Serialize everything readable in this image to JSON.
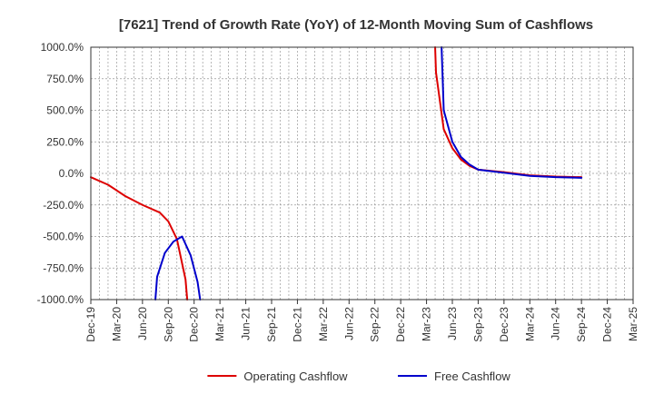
{
  "chart_data": {
    "type": "line",
    "title": "[7621]  Trend of Growth Rate (YoY) of 12-Month Moving Sum of Cashflows",
    "xlabel": "",
    "ylabel": "",
    "ylim": [
      -1000,
      1000
    ],
    "y_ticks": [
      1000,
      750,
      500,
      250,
      0,
      -250,
      -500,
      -750,
      -1000
    ],
    "y_tick_labels": [
      "1000.0%",
      "750.0%",
      "500.0%",
      "250.0%",
      "0.0%",
      "-250.0%",
      "-500.0%",
      "-750.0%",
      "-1000.0%"
    ],
    "x_categories": [
      "Dec-19",
      "Mar-20",
      "Jun-20",
      "Sep-20",
      "Dec-20",
      "Mar-21",
      "Jun-21",
      "Sep-21",
      "Dec-21",
      "Mar-22",
      "Jun-22",
      "Sep-22",
      "Dec-22",
      "Mar-23",
      "Jun-23",
      "Sep-23",
      "Dec-23",
      "Mar-24",
      "Jun-24",
      "Sep-24",
      "Dec-24",
      "Mar-25"
    ],
    "grid": true,
    "legend_position": "bottom-center",
    "series": [
      {
        "name": "Operating Cashflow",
        "color": "#dd0000",
        "segments": [
          [
            [
              0,
              -30
            ],
            [
              2,
              -90
            ],
            [
              4,
              -180
            ],
            [
              6,
              -250
            ],
            [
              8,
              -310
            ],
            [
              9,
              -380
            ],
            [
              10,
              -520
            ],
            [
              11,
              -840
            ],
            [
              11.2,
              -1000
            ]
          ],
          [
            [
              40.0,
              1000
            ],
            [
              40.1,
              800
            ],
            [
              41,
              350
            ],
            [
              42,
              200
            ],
            [
              43,
              110
            ],
            [
              44,
              60
            ],
            [
              45,
              30
            ],
            [
              48,
              10
            ],
            [
              51,
              -15
            ],
            [
              54,
              -25
            ],
            [
              57,
              -30
            ]
          ]
        ]
      },
      {
        "name": "Free Cashflow",
        "color": "#0000cc",
        "segments": [
          [
            [
              7.5,
              -1000
            ],
            [
              7.7,
              -820
            ],
            [
              8.6,
              -630
            ],
            [
              9.6,
              -540
            ],
            [
              10.6,
              -500
            ],
            [
              11.6,
              -650
            ],
            [
              12.4,
              -860
            ],
            [
              12.7,
              -1000
            ]
          ],
          [
            [
              40.75,
              1000
            ],
            [
              41,
              500
            ],
            [
              42,
              250
            ],
            [
              43,
              130
            ],
            [
              44,
              70
            ],
            [
              45,
              30
            ],
            [
              48,
              5
            ],
            [
              51,
              -20
            ],
            [
              54,
              -30
            ],
            [
              57,
              -35
            ]
          ]
        ]
      }
    ]
  }
}
